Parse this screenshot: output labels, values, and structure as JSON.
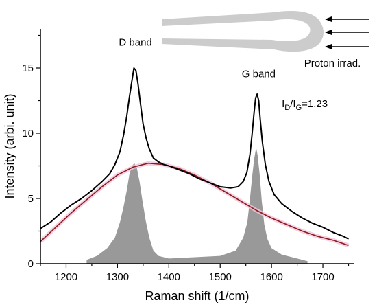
{
  "chart_data": {
    "type": "line",
    "xlabel": "Raman shift (1/cm)",
    "ylabel": "Intensity (arbi. unit)",
    "xlim": [
      1150,
      1760
    ],
    "ylim": [
      0,
      18
    ],
    "x_ticks": [
      1200,
      1300,
      1400,
      1500,
      1600,
      1700
    ],
    "y_ticks": [
      0,
      5,
      10,
      15
    ],
    "grid": false,
    "colors": {
      "spectrum": "#000000",
      "baseline": "#8b1a1a",
      "baseline_glow": "#f2c4dc",
      "peaks_fill": "#999999",
      "fiber": "#cccccc",
      "arrows": "#000000"
    },
    "spectrum": {
      "x": [
        1150,
        1170,
        1190,
        1210,
        1230,
        1250,
        1270,
        1285,
        1295,
        1305,
        1312,
        1318,
        1323,
        1328,
        1332,
        1336,
        1340,
        1345,
        1350,
        1356,
        1362,
        1370,
        1380,
        1390,
        1400,
        1420,
        1440,
        1460,
        1480,
        1500,
        1520,
        1535,
        1545,
        1552,
        1558,
        1562,
        1566,
        1569,
        1572,
        1575,
        1578,
        1582,
        1588,
        1595,
        1605,
        1620,
        1640,
        1660,
        1680,
        1700,
        1720,
        1740,
        1750
      ],
      "y": [
        2.7,
        3.2,
        3.9,
        4.5,
        5.0,
        5.6,
        6.3,
        6.9,
        7.6,
        8.6,
        9.9,
        11.3,
        12.7,
        14.0,
        15.0,
        14.8,
        13.8,
        12.2,
        10.7,
        9.6,
        8.8,
        8.1,
        7.8,
        7.6,
        7.5,
        7.2,
        6.9,
        6.5,
        6.2,
        5.9,
        5.8,
        5.9,
        6.3,
        7.0,
        8.4,
        9.9,
        11.6,
        12.7,
        13.0,
        12.5,
        11.1,
        9.4,
        7.6,
        6.3,
        5.3,
        4.6,
        4.0,
        3.5,
        3.1,
        2.8,
        2.4,
        2.1,
        1.9
      ]
    },
    "baseline_fit": {
      "x": [
        1150,
        1180,
        1210,
        1240,
        1270,
        1300,
        1330,
        1360,
        1390,
        1420,
        1450,
        1480,
        1510,
        1540,
        1570,
        1600,
        1630,
        1660,
        1690,
        1720,
        1750
      ],
      "y": [
        1.7,
        2.8,
        3.9,
        4.9,
        5.9,
        6.8,
        7.4,
        7.7,
        7.6,
        7.3,
        6.8,
        6.2,
        5.5,
        4.8,
        4.1,
        3.5,
        3.0,
        2.5,
        2.1,
        1.8,
        1.4
      ]
    },
    "peaks": {
      "x": [
        1240,
        1260,
        1280,
        1295,
        1305,
        1312,
        1318,
        1323,
        1328,
        1333,
        1338,
        1343,
        1348,
        1355,
        1362,
        1370,
        1380,
        1400,
        1450,
        1500,
        1530,
        1545,
        1553,
        1558,
        1562,
        1566,
        1570,
        1573,
        1577,
        1581,
        1586,
        1592,
        1600,
        1620,
        1650,
        1670
      ],
      "y": [
        0.3,
        0.6,
        1.2,
        2.0,
        3.2,
        4.4,
        5.6,
        6.8,
        7.5,
        7.7,
        7.3,
        6.3,
        5.0,
        3.3,
        2.0,
        1.0,
        0.6,
        0.4,
        0.5,
        0.6,
        1.0,
        2.0,
        3.2,
        5.0,
        6.6,
        8.0,
        8.9,
        8.3,
        6.8,
        4.8,
        3.0,
        1.9,
        1.2,
        0.7,
        0.4,
        0.2
      ]
    },
    "annotations": {
      "d_band": {
        "text": "D band",
        "x": 1335,
        "y": 16.7
      },
      "g_band": {
        "text": "G band",
        "x": 1575,
        "y": 14.3
      },
      "ratio": {
        "text": "I",
        "sub1": "D",
        "mid": "/I",
        "sub2": "G",
        "tail": "=1.23",
        "x": 1620,
        "y": 12.0
      },
      "proton": {
        "text": "Proton irrad."
      }
    }
  }
}
